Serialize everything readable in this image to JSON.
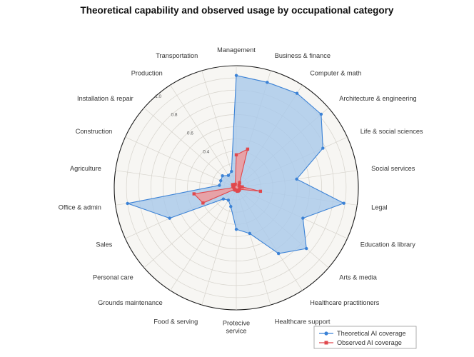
{
  "chart_data": {
    "type": "radar",
    "title": "Theoretical capability and observed usage by occupational category",
    "categories": [
      "Management",
      "Business & finance",
      "Computer & math",
      "Architecture & engineering",
      "Life & social sciences",
      "Social services",
      "Legal",
      "Education & library",
      "Arts & media",
      "Healthcare practitioners",
      "Healthcare support",
      "Protective service",
      "Food & serving",
      "Grounds maintenance",
      "Personal care",
      "Sales",
      "Office & admin",
      "Agriculture",
      "Construction",
      "Installation & repair",
      "Production",
      "Transportation"
    ],
    "category_display": [
      [
        "Management"
      ],
      [
        "Business & finance"
      ],
      [
        "Computer & math"
      ],
      [
        "Architecture & engineering"
      ],
      [
        "Life & social sciences"
      ],
      [
        "Social services"
      ],
      [
        "Legal"
      ],
      [
        "Education & library"
      ],
      [
        "Arts & media"
      ],
      [
        "Healthcare practitioners"
      ],
      [
        "Healthcare support"
      ],
      [
        "Protecive",
        "service"
      ],
      [
        "Food & serving"
      ],
      [
        "Grounds maintenance"
      ],
      [
        "Personal care"
      ],
      [
        "Sales"
      ],
      [
        "Office & admin"
      ],
      [
        "Agriculture"
      ],
      [
        "Construction"
      ],
      [
        "Installation & repair"
      ],
      [
        "Production"
      ],
      [
        "Transportation"
      ]
    ],
    "series": [
      {
        "name": "Theoretical AI coverage",
        "color": "#3b82d6",
        "fill": "#a9c9ea",
        "marker": "circle",
        "values": [
          0.92,
          0.9,
          0.92,
          0.92,
          0.78,
          0.5,
          0.89,
          0.6,
          0.76,
          0.64,
          0.39,
          0.34,
          0.16,
          0.12,
          0.14,
          0.6,
          0.9,
          0.14,
          0.14,
          0.15,
          0.12,
          0.14
        ]
      },
      {
        "name": "Observed AI coverage",
        "color": "#e0484d",
        "fill": "#ee9a9b",
        "marker": "square",
        "values": [
          0.27,
          0.33,
          0.05,
          0.03,
          0.03,
          0.05,
          0.2,
          0.03,
          0.03,
          0.03,
          0.03,
          0.02,
          0.02,
          0.02,
          0.02,
          0.3,
          0.35,
          0.02,
          0.03,
          0.04,
          0.03,
          0.03
        ]
      }
    ],
    "rlim": [
      0,
      1.0
    ],
    "radial_ticks": [
      "0.4",
      "0.6",
      "0.8",
      "1.0"
    ],
    "radial_tick_values": [
      0.4,
      0.6,
      0.8,
      1.0
    ],
    "gridlines": true,
    "legend_position": "bottom-right",
    "colors": {
      "plot_background": "#f7f6f3",
      "grid": "#d6d3cc",
      "text": "#333333",
      "title": "#111111"
    }
  }
}
